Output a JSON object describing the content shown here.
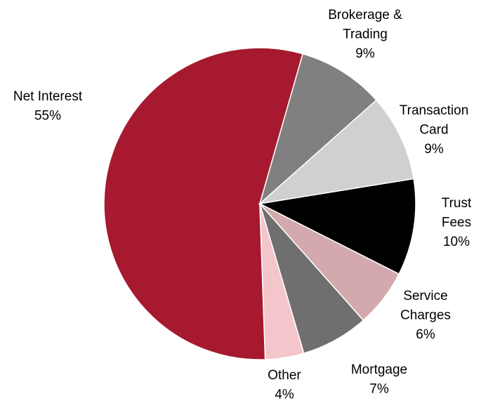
{
  "chart_data": {
    "type": "pie",
    "categories": [
      [
        "Net Interest"
      ],
      [
        "Brokerage &",
        "Trading"
      ],
      [
        "Transaction",
        "Card"
      ],
      [
        "Trust",
        "Fees"
      ],
      [
        "Service",
        "Charges"
      ],
      [
        "Mortgage"
      ],
      [
        "Other"
      ]
    ],
    "values": [
      55,
      9,
      9,
      10,
      6,
      7,
      4
    ],
    "value_labels": [
      "55%",
      "9%",
      "9%",
      "10%",
      "6%",
      "7%",
      "4%"
    ],
    "colors": [
      "#a6192e",
      "#808080",
      "#cfd0d2",
      "#000000",
      "#d4a9ad",
      "#6f6f70",
      "#f4c5cb"
    ]
  }
}
